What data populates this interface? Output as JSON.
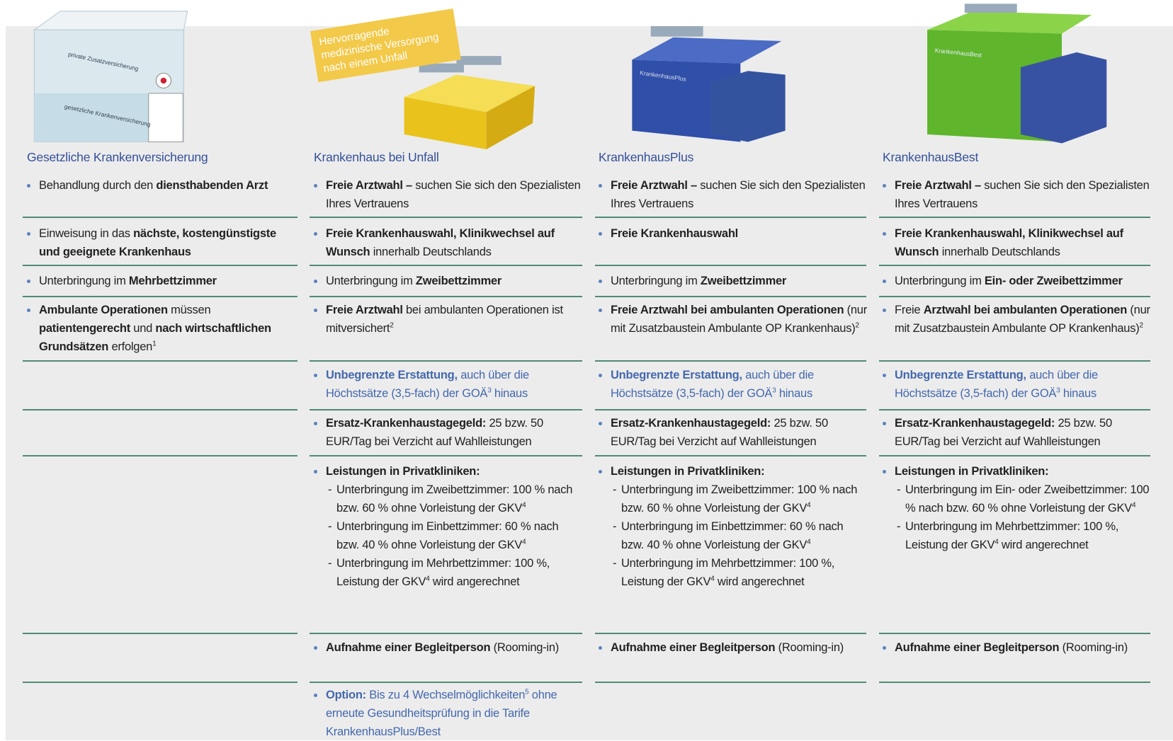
{
  "header_banner": "Hervorragende medizinische Versorgung nach einem Unfall",
  "illustration_labels": [
    "private Zusatzversicherung",
    "gesetzliche Krankenversicherung",
    "KrankenhausPlus",
    "KrankenhausBest"
  ],
  "columns": [
    {
      "title": "Gesetzliche Krankenversicherung",
      "rows": [
        {
          "runs": [
            {
              "text": "Behandlung durch den "
            },
            {
              "text": "diensthabenden Arzt",
              "style": "bold"
            }
          ]
        },
        {
          "runs": [
            {
              "text": "Einweisung in das "
            },
            {
              "text": "nächste, kostengünstigste und geeignete Krankenhaus",
              "style": "bold"
            }
          ]
        },
        {
          "runs": [
            {
              "text": "Unterbringung im "
            },
            {
              "text": "Mehrbettzimmer",
              "style": "bold"
            }
          ]
        },
        {
          "runs": [
            {
              "text": "Ambulante Operationen",
              "style": "bold"
            },
            {
              "text": " müssen "
            },
            {
              "text": "patientengerecht",
              "style": "bold"
            },
            {
              "text": " und "
            },
            {
              "text": "nach wirtschaftlichen Grundsätzen",
              "style": "bold"
            },
            {
              "text": " erfolgen"
            },
            {
              "text": "1",
              "style": "sup"
            }
          ]
        },
        null,
        null,
        null,
        null,
        null
      ]
    },
    {
      "title": "Krankenhaus bei Unfall",
      "rows": [
        {
          "runs": [
            {
              "text": "Freie Arztwahl –",
              "style": "bold"
            },
            {
              "text": " suchen Sie sich den Spezialisten Ihres Vertrauens"
            }
          ]
        },
        {
          "runs": [
            {
              "text": "Freie Krankenhauswahl, Klinikwechsel auf Wunsch",
              "style": "bold"
            },
            {
              "text": " innerhalb Deutschlands"
            }
          ]
        },
        {
          "runs": [
            {
              "text": "Unterbringung im "
            },
            {
              "text": "Zweibettzimmer",
              "style": "bold"
            }
          ]
        },
        {
          "runs": [
            {
              "text": "Freie Arztwahl",
              "style": "bold"
            },
            {
              "text": " bei ambulanten Operationen ist mitversichert"
            },
            {
              "text": "2",
              "style": "sup"
            }
          ]
        },
        {
          "runs": [
            {
              "text": "Unbegrenzte Erstattung,",
              "style": "blue-bold"
            },
            {
              "text": " auch über die Höchstsätze (3,5-fach) der GOÄ",
              "style": "blue"
            },
            {
              "text": "3",
              "style": "blue-sup"
            },
            {
              "text": " hinaus",
              "style": "blue"
            }
          ]
        },
        {
          "runs": [
            {
              "text": "Ersatz-Krankenhaustagegeld:",
              "style": "bold"
            },
            {
              "text": " 25 bzw. 50 EUR/Tag bei Verzicht auf Wahlleistungen"
            }
          ]
        },
        {
          "runs": [
            {
              "text": "Leistungen in Privatkliniken:",
              "style": "bold"
            }
          ],
          "sub": [
            [
              {
                "text": "Unterbringung im Zweibettzimmer: 100 % nach bzw. 60 % ohne Vorleistung der GKV"
              },
              {
                "text": "4",
                "style": "sup"
              }
            ],
            [
              {
                "text": "Unterbringung im Einbettzimmer: 60 % nach bzw. 40 % ohne Vorleistung der GKV"
              },
              {
                "text": "4",
                "style": "sup"
              }
            ],
            [
              {
                "text": "Unterbringung im Mehrbettzimmer: 100 %, Leistung der GKV"
              },
              {
                "text": "4",
                "style": "sup"
              },
              {
                "text": " wird angerechnet"
              }
            ]
          ]
        },
        {
          "runs": [
            {
              "text": "Aufnahme einer Begleitperson",
              "style": "bold"
            },
            {
              "text": " (Rooming-in)"
            }
          ]
        },
        {
          "runs": [
            {
              "text": "Option:",
              "style": "blue-bold"
            },
            {
              "text": " Bis zu 4 Wechselmöglichkeiten",
              "style": "blue"
            },
            {
              "text": "5",
              "style": "blue-sup"
            },
            {
              "text": " ohne erneute Gesundheitsprüfung in die Tarife KrankenhausPlus/Best",
              "style": "blue"
            }
          ]
        }
      ]
    },
    {
      "title": "KrankenhausPlus",
      "rows": [
        {
          "runs": [
            {
              "text": "Freie Arztwahl –",
              "style": "bold"
            },
            {
              "text": " suchen Sie sich den Spezialisten Ihres Vertrauens"
            }
          ]
        },
        {
          "runs": [
            {
              "text": "Freie Krankenhauswahl",
              "style": "bold"
            }
          ]
        },
        {
          "runs": [
            {
              "text": "Unterbringung im "
            },
            {
              "text": "Zweibettzimmer",
              "style": "bold"
            }
          ]
        },
        {
          "runs": [
            {
              "text": "Freie Arztwahl bei ambulanten Operationen",
              "style": "bold"
            },
            {
              "text": " (nur mit Zusatzbaustein Ambulante OP Krankenhaus)"
            },
            {
              "text": "2",
              "style": "sup"
            }
          ]
        },
        {
          "runs": [
            {
              "text": "Unbegrenzte Erstattung,",
              "style": "blue-bold"
            },
            {
              "text": " auch über die Höchstsätze (3,5-fach) der GOÄ",
              "style": "blue"
            },
            {
              "text": "3",
              "style": "blue-sup"
            },
            {
              "text": " hinaus",
              "style": "blue"
            }
          ]
        },
        {
          "runs": [
            {
              "text": "Ersatz-Krankenhaustagegeld:",
              "style": "bold"
            },
            {
              "text": " 25 bzw. 50 EUR/Tag bei Verzicht auf Wahlleistungen"
            }
          ]
        },
        {
          "runs": [
            {
              "text": "Leistungen in Privatkliniken:",
              "style": "bold"
            }
          ],
          "sub": [
            [
              {
                "text": "Unterbringung im Zweibettzimmer: 100 % nach bzw. 60 % ohne Vorleistung der GKV"
              },
              {
                "text": "4",
                "style": "sup"
              }
            ],
            [
              {
                "text": "Unterbringung im Einbettzimmer: 60 % nach bzw. 40 % ohne Vorleistung der GKV"
              },
              {
                "text": "4",
                "style": "sup"
              }
            ],
            [
              {
                "text": "Unterbringung im Mehrbettzimmer: 100 %, Leistung der GKV"
              },
              {
                "text": "4",
                "style": "sup"
              },
              {
                "text": " wird angerechnet"
              }
            ]
          ]
        },
        {
          "runs": [
            {
              "text": "Aufnahme einer Begleitperson",
              "style": "bold"
            },
            {
              "text": " (Rooming-in)"
            }
          ]
        },
        null
      ]
    },
    {
      "title": "KrankenhausBest",
      "rows": [
        {
          "runs": [
            {
              "text": "Freie Arztwahl –",
              "style": "bold"
            },
            {
              "text": " suchen Sie sich den Spezialisten Ihres Vertrauens"
            }
          ]
        },
        {
          "runs": [
            {
              "text": "Freie Krankenhauswahl, Klinikwechsel auf Wunsch",
              "style": "bold"
            },
            {
              "text": " innerhalb Deutschlands"
            }
          ]
        },
        {
          "runs": [
            {
              "text": "Unterbringung im "
            },
            {
              "text": "Ein- oder Zweibettzimmer",
              "style": "bold"
            }
          ]
        },
        {
          "runs": [
            {
              "text": "Freie "
            },
            {
              "text": "Arztwahl bei ambulanten Operationen",
              "style": "bold"
            },
            {
              "text": " (nur mit Zusatzbaustein Ambulante OP Krankenhaus)"
            },
            {
              "text": "2",
              "style": "sup"
            }
          ]
        },
        {
          "runs": [
            {
              "text": "Unbegrenzte Erstattung,",
              "style": "blue-bold"
            },
            {
              "text": " auch über die Höchstsätze (3,5-fach) der GOÄ",
              "style": "blue"
            },
            {
              "text": "3",
              "style": "blue-sup"
            },
            {
              "text": " hinaus",
              "style": "blue"
            }
          ]
        },
        {
          "runs": [
            {
              "text": "Ersatz-Krankenhaustagegeld:",
              "style": "bold"
            },
            {
              "text": " 25 bzw. 50 EUR/Tag bei Verzicht auf Wahlleistungen"
            }
          ]
        },
        {
          "runs": [
            {
              "text": "Leistungen in Privatkliniken:",
              "style": "bold"
            }
          ],
          "sub": [
            [
              {
                "text": "Unterbringung im Ein- oder Zweibettzimmer: 100 % nach bzw. 60 % ohne Vorleistung der GKV"
              },
              {
                "text": "4",
                "style": "sup"
              }
            ],
            [
              {
                "text": "Unterbringung im Mehrbettzimmer: 100 %, Leistung der GKV"
              },
              {
                "text": "4",
                "style": "sup"
              },
              {
                "text": " wird angerechnet"
              }
            ]
          ]
        },
        {
          "runs": [
            {
              "text": "Aufnahme einer Begleitperson",
              "style": "bold"
            },
            {
              "text": " (Rooming-in)"
            }
          ]
        },
        null
      ]
    }
  ]
}
